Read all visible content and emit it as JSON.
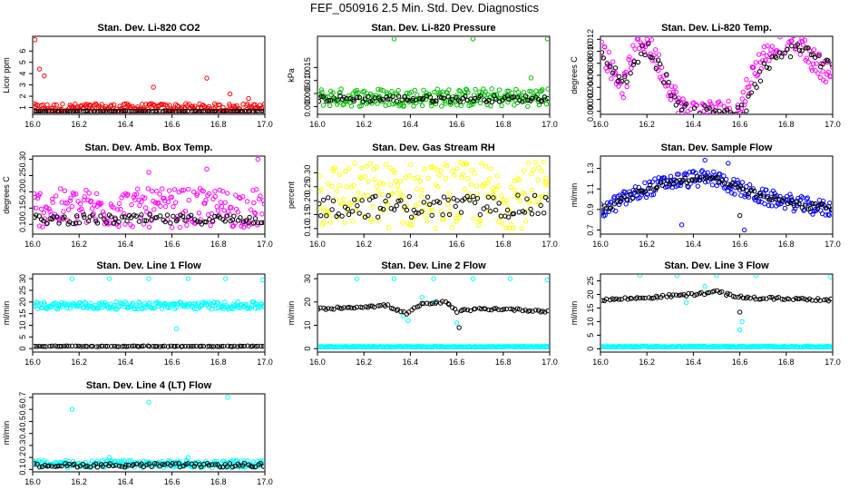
{
  "page_title": "FEF_050916  2.5 Min. Std. Dev. Diagnostics",
  "colors": {
    "black": "#000000",
    "red": "#ff0000",
    "green": "#00c000",
    "magenta": "#ff00ff",
    "yellow": "#ffff00",
    "blue": "#0000ff",
    "cyan": "#00ffff"
  },
  "chart_data": [
    {
      "type": "scatter",
      "title": "Stan. Dev. Li-820 CO2",
      "ylabel": "Licor ppm",
      "xlim": [
        16.0,
        17.0
      ],
      "ylim": [
        0.4,
        7.3
      ],
      "xticks": [
        16.0,
        16.2,
        16.4,
        16.6,
        16.8,
        17.0
      ],
      "xtick_labels": [
        "16.0",
        "16.2",
        "16.4",
        "16.6",
        "16.8",
        "17.0"
      ],
      "yticks": [
        1,
        2,
        3,
        4,
        5,
        6
      ],
      "ytick_labels": [
        "1",
        "2",
        "3",
        "4",
        "5",
        "6"
      ],
      "series": [
        {
          "color": "#ff0000",
          "base": 0.95,
          "spread": 0.4,
          "outliers": [
            [
              16.01,
              7.0
            ],
            [
              16.03,
              4.4
            ],
            [
              16.05,
              3.8
            ],
            [
              16.52,
              2.8
            ],
            [
              16.75,
              3.6
            ],
            [
              16.85,
              2.2
            ],
            [
              16.93,
              1.8
            ]
          ]
        },
        {
          "color": "#000000",
          "base": 0.55,
          "spread": 0.15,
          "outliers": []
        }
      ]
    },
    {
      "type": "scatter",
      "title": "Stan. Dev. Li-820 Pressure",
      "ylabel": "kPa",
      "xlim": [
        16.0,
        17.0
      ],
      "ylim": [
        -0.003,
        0.027
      ],
      "xticks": [
        16.0,
        16.2,
        16.4,
        16.6,
        16.8,
        17.0
      ],
      "xtick_labels": [
        "16.0",
        "16.2",
        "16.4",
        "16.6",
        "16.8",
        "17.0"
      ],
      "yticks": [
        0.0,
        0.005,
        0.01,
        0.015
      ],
      "ytick_labels": [
        "0.000",
        "0.005",
        "0.010",
        "0.015"
      ],
      "series": [
        {
          "color": "#00c000",
          "base": 0.0035,
          "spread": 0.0035,
          "outliers": [
            [
              16.33,
              0.026
            ],
            [
              16.67,
              0.026
            ],
            [
              16.99,
              0.026
            ],
            [
              16.92,
              0.011
            ]
          ]
        },
        {
          "color": "#000000",
          "base": 0.003,
          "spread": 0.0015,
          "outliers": []
        }
      ]
    },
    {
      "type": "scatter",
      "title": "Stan. Dev. Li-820 Temp.",
      "ylabel": "degrees C",
      "xlim": [
        16.0,
        17.0
      ],
      "ylim": [
        -0.0005,
        0.0125
      ],
      "xticks": [
        16.0,
        16.2,
        16.4,
        16.6,
        16.8,
        17.0
      ],
      "xtick_labels": [
        "16.0",
        "16.2",
        "16.4",
        "16.6",
        "16.8",
        "17.0"
      ],
      "yticks": [
        0.0,
        0.002,
        0.004,
        0.006,
        0.008,
        0.01,
        0.012
      ],
      "ytick_labels": [
        "0.000",
        "0.002",
        "0.004",
        "0.006",
        "0.008",
        "0.010",
        "0.012"
      ],
      "series": [
        {
          "color": "#ff00ff",
          "base": 0.0,
          "spread": 0.002,
          "curve": [
            [
              16.0,
              0.011
            ],
            [
              16.05,
              0.007
            ],
            [
              16.1,
              0.004
            ],
            [
              16.15,
              0.011
            ],
            [
              16.2,
              0.0115
            ],
            [
              16.25,
              0.008
            ],
            [
              16.3,
              0.004
            ],
            [
              16.35,
              0.0005
            ],
            [
              16.4,
              0.0
            ],
            [
              16.5,
              0.0
            ],
            [
              16.6,
              0.0
            ],
            [
              16.63,
              0.004
            ],
            [
              16.68,
              0.008
            ],
            [
              16.75,
              0.0115
            ],
            [
              16.85,
              0.012
            ],
            [
              16.9,
              0.009
            ],
            [
              17.0,
              0.006
            ]
          ],
          "outliers": []
        },
        {
          "color": "#000000",
          "base": 0.0,
          "spread": 0.0015,
          "curve": [
            [
              16.0,
              0.009
            ],
            [
              16.1,
              0.005
            ],
            [
              16.2,
              0.011
            ],
            [
              16.3,
              0.004
            ],
            [
              16.35,
              0.0
            ],
            [
              16.62,
              0.0
            ],
            [
              16.7,
              0.007
            ],
            [
              16.85,
              0.011
            ],
            [
              17.0,
              0.007
            ]
          ],
          "outliers": []
        }
      ]
    },
    {
      "type": "scatter",
      "title": "Stan. Dev. Amb. Box Temp.",
      "ylabel": "degrees C",
      "xlim": [
        16.0,
        17.0
      ],
      "ylim": [
        0.07,
        0.31
      ],
      "xticks": [
        16.0,
        16.2,
        16.4,
        16.6,
        16.8,
        17.0
      ],
      "xtick_labels": [
        "16.0",
        "16.2",
        "16.4",
        "16.6",
        "16.8",
        "17.0"
      ],
      "yticks": [
        0.1,
        0.15,
        0.2,
        0.25,
        0.3
      ],
      "ytick_labels": [
        "0.10",
        "0.15",
        "0.20",
        "0.25",
        "0.30"
      ],
      "series": [
        {
          "color": "#ff00ff",
          "base": 0.15,
          "spread": 0.06,
          "outliers": [
            [
              16.97,
              0.3
            ],
            [
              16.5,
              0.26
            ],
            [
              16.75,
              0.27
            ]
          ]
        },
        {
          "color": "#000000",
          "base": 0.115,
          "spread": 0.018,
          "outliers": []
        }
      ]
    },
    {
      "type": "scatter",
      "title": "Stan. Dev. Gas Stream RH",
      "ylabel": "percent",
      "xlim": [
        16.0,
        17.0
      ],
      "ylim": [
        0.08,
        0.36
      ],
      "xticks": [
        16.0,
        16.2,
        16.4,
        16.6,
        16.8,
        17.0
      ],
      "xtick_labels": [
        "16.0",
        "16.2",
        "16.4",
        "16.6",
        "16.8",
        "17.0"
      ],
      "yticks": [
        0.1,
        0.15,
        0.2,
        0.25,
        0.3
      ],
      "ytick_labels": [
        "0.10",
        "0.15",
        "0.20",
        "0.25",
        "0.30"
      ],
      "series": [
        {
          "color": "#ffff00",
          "base": 0.22,
          "spread": 0.12,
          "outliers": []
        },
        {
          "color": "#000000",
          "base": 0.18,
          "spread": 0.05,
          "outliers": []
        }
      ]
    },
    {
      "type": "scatter",
      "title": "Stan. Dev. Sample Flow",
      "ylabel": "ml/min",
      "xlim": [
        16.0,
        17.0
      ],
      "ylim": [
        0.66,
        1.42
      ],
      "xticks": [
        16.0,
        16.2,
        16.4,
        16.6,
        16.8,
        17.0
      ],
      "xtick_labels": [
        "16.0",
        "16.2",
        "16.4",
        "16.6",
        "16.8",
        "17.0"
      ],
      "yticks": [
        0.7,
        0.9,
        1.1,
        1.3
      ],
      "ytick_labels": [
        "0.7",
        "0.9",
        "1.1",
        "1.3"
      ],
      "series": [
        {
          "color": "#0000ff",
          "base": 0.0,
          "spread": 0.08,
          "curve": [
            [
              16.0,
              0.88
            ],
            [
              16.1,
              1.0
            ],
            [
              16.2,
              1.1
            ],
            [
              16.3,
              1.17
            ],
            [
              16.4,
              1.2
            ],
            [
              16.5,
              1.2
            ],
            [
              16.6,
              1.1
            ],
            [
              16.7,
              1.02
            ],
            [
              16.8,
              0.98
            ],
            [
              16.9,
              0.93
            ],
            [
              17.0,
              0.9
            ]
          ],
          "outliers": [
            [
              16.35,
              0.75
            ],
            [
              16.62,
              0.7
            ],
            [
              16.45,
              1.38
            ],
            [
              16.55,
              1.35
            ]
          ]
        },
        {
          "color": "#000000",
          "base": 0.0,
          "spread": 0.04,
          "curve": [
            [
              16.0,
              0.9
            ],
            [
              16.1,
              1.0
            ],
            [
              16.2,
              1.1
            ],
            [
              16.3,
              1.17
            ],
            [
              16.4,
              1.2
            ],
            [
              16.5,
              1.2
            ],
            [
              16.6,
              1.1
            ],
            [
              16.7,
              1.02
            ],
            [
              16.8,
              0.98
            ],
            [
              16.9,
              0.93
            ],
            [
              17.0,
              0.92
            ]
          ],
          "outliers": [
            [
              16.6,
              0.84
            ]
          ]
        }
      ]
    },
    {
      "type": "scatter",
      "title": "Stan. Dev. Line 1 Flow",
      "ylabel": "ml/min",
      "xlim": [
        16.0,
        17.0
      ],
      "ylim": [
        -1.5,
        32
      ],
      "xticks": [
        16.0,
        16.2,
        16.4,
        16.6,
        16.8,
        17.0
      ],
      "xtick_labels": [
        "16.0",
        "16.2",
        "16.4",
        "16.6",
        "16.8",
        "17.0"
      ],
      "yticks": [
        0,
        5,
        10,
        15,
        20,
        25,
        30
      ],
      "ytick_labels": [
        "0",
        "5",
        "10",
        "15",
        "20",
        "25",
        "30"
      ],
      "series": [
        {
          "color": "#00ffff",
          "base": 18.5,
          "spread": 1.6,
          "outliers": [
            [
              16.17,
              30
            ],
            [
              16.33,
              30
            ],
            [
              16.5,
              30
            ],
            [
              16.67,
              30
            ],
            [
              16.83,
              30
            ],
            [
              16.99,
              29.5
            ],
            [
              16.62,
              8.5
            ]
          ]
        },
        {
          "color": "#000000",
          "base": 1.0,
          "spread": 0.2,
          "outliers": []
        }
      ]
    },
    {
      "type": "scatter",
      "title": "Stan. Dev. Line 2 Flow",
      "ylabel": "ml/min",
      "xlim": [
        16.0,
        17.0
      ],
      "ylim": [
        -1.5,
        32
      ],
      "xticks": [
        16.0,
        16.2,
        16.4,
        16.6,
        16.8,
        17.0
      ],
      "xtick_labels": [
        "16.0",
        "16.2",
        "16.4",
        "16.6",
        "16.8",
        "17.0"
      ],
      "yticks": [
        0,
        10,
        20,
        30
      ],
      "ytick_labels": [
        "0",
        "10",
        "20",
        "30"
      ],
      "series": [
        {
          "color": "#00ffff",
          "base": 0.8,
          "spread": 0.2,
          "outliers": [
            [
              16.17,
              30
            ],
            [
              16.33,
              30
            ],
            [
              16.5,
              30
            ],
            [
              16.67,
              30
            ],
            [
              16.83,
              30
            ],
            [
              16.99,
              29.5
            ],
            [
              16.37,
              14
            ],
            [
              16.39,
              12
            ],
            [
              16.6,
              11
            ],
            [
              16.45,
              22
            ],
            [
              16.5,
              20
            ]
          ]
        },
        {
          "color": "#000000",
          "base": 0.0,
          "spread": 0.6,
          "curve": [
            [
              16.0,
              17
            ],
            [
              16.2,
              18
            ],
            [
              16.3,
              18.5
            ],
            [
              16.38,
              15
            ],
            [
              16.45,
              19
            ],
            [
              16.55,
              20
            ],
            [
              16.6,
              16
            ],
            [
              16.7,
              17
            ],
            [
              16.8,
              17
            ],
            [
              17.0,
              16
            ]
          ],
          "outliers": [
            [
              16.61,
              9
            ]
          ]
        }
      ]
    },
    {
      "type": "scatter",
      "title": "Stan. Dev. Line 3 Flow",
      "ylabel": "ml/min",
      "xlim": [
        16.0,
        17.0
      ],
      "ylim": [
        -1.2,
        27.5
      ],
      "xticks": [
        16.0,
        16.2,
        16.4,
        16.6,
        16.8,
        17.0
      ],
      "xtick_labels": [
        "16.0",
        "16.2",
        "16.4",
        "16.6",
        "16.8",
        "17.0"
      ],
      "yticks": [
        0,
        5,
        10,
        15,
        20,
        25
      ],
      "ytick_labels": [
        "0",
        "5",
        "10",
        "15",
        "20",
        "25"
      ],
      "series": [
        {
          "color": "#00ffff",
          "base": 0.8,
          "spread": 0.2,
          "outliers": [
            [
              16.17,
              27
            ],
            [
              16.33,
              27
            ],
            [
              16.5,
              27
            ],
            [
              16.67,
              27
            ],
            [
              16.99,
              26.5
            ],
            [
              16.37,
              17
            ],
            [
              16.6,
              7
            ],
            [
              16.61,
              10
            ],
            [
              16.45,
              23
            ]
          ]
        },
        {
          "color": "#000000",
          "base": 0.0,
          "spread": 0.6,
          "curve": [
            [
              16.0,
              18
            ],
            [
              16.2,
              18.8
            ],
            [
              16.3,
              19.5
            ],
            [
              16.4,
              20
            ],
            [
              16.5,
              21
            ],
            [
              16.6,
              19
            ],
            [
              16.7,
              18.5
            ],
            [
              16.8,
              18.5
            ],
            [
              17.0,
              18
            ]
          ],
          "outliers": [
            [
              16.6,
              13.5
            ]
          ]
        }
      ]
    },
    {
      "type": "scatter",
      "title": "Stan. Dev. Line 4 (LT) Flow",
      "ylabel": "ml/min",
      "xlim": [
        16.0,
        17.0
      ],
      "ylim": [
        0.08,
        0.73
      ],
      "xticks": [
        16.0,
        16.2,
        16.4,
        16.6,
        16.8,
        17.0
      ],
      "xtick_labels": [
        "16.0",
        "16.2",
        "16.4",
        "16.6",
        "16.8",
        "17.0"
      ],
      "yticks": [
        0.1,
        0.2,
        0.3,
        0.4,
        0.5,
        0.6,
        0.7
      ],
      "ytick_labels": [
        "0.1",
        "0.2",
        "0.3",
        "0.4",
        "0.5",
        "0.6",
        "0.7"
      ],
      "series": [
        {
          "color": "#00ffff",
          "base": 0.145,
          "spread": 0.03,
          "outliers": [
            [
              16.17,
              0.6
            ],
            [
              16.5,
              0.66
            ],
            [
              16.84,
              0.7
            ],
            [
              16.33,
              0.2
            ],
            [
              16.67,
              0.2
            ]
          ]
        },
        {
          "color": "#000000",
          "base": 0.135,
          "spread": 0.02,
          "outliers": []
        }
      ]
    }
  ]
}
